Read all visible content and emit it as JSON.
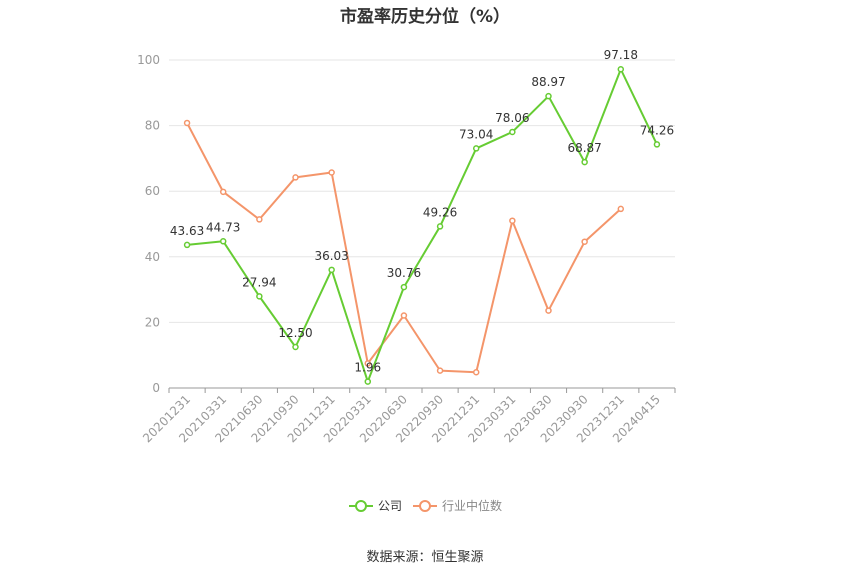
{
  "chart_data": {
    "type": "line",
    "title": "市盈率历史分位（%）",
    "categories": [
      "20201231",
      "20210331",
      "20210630",
      "20210930",
      "20211231",
      "20220331",
      "20220630",
      "20220930",
      "20221231",
      "20230331",
      "20230630",
      "20230930",
      "20231231",
      "20240415"
    ],
    "ylim": [
      0,
      100
    ],
    "yticks": [
      0,
      20,
      40,
      60,
      80,
      100
    ],
    "grid": true,
    "legend_position": "bottom",
    "series": [
      {
        "name": "公司",
        "color": "#66cc33",
        "values": [
          43.63,
          44.73,
          27.94,
          12.5,
          36.03,
          1.96,
          30.76,
          49.26,
          73.04,
          78.06,
          88.97,
          68.87,
          97.18,
          74.26
        ],
        "labels": [
          "43.63",
          "44.73",
          "27.94",
          "12.50",
          "36.03",
          "1.96",
          "30.76",
          "49.26",
          "73.04",
          "78.06",
          "88.97",
          "68.87",
          "97.18",
          "74.26"
        ]
      },
      {
        "name": "行业中位数",
        "color": "#f4956a",
        "values": [
          80.8,
          59.8,
          51.4,
          64.2,
          65.7,
          7.5,
          22.1,
          5.3,
          4.8,
          51.0,
          23.6,
          44.6,
          54.6,
          null
        ]
      }
    ]
  },
  "source_text": "数据来源：恒生聚源"
}
